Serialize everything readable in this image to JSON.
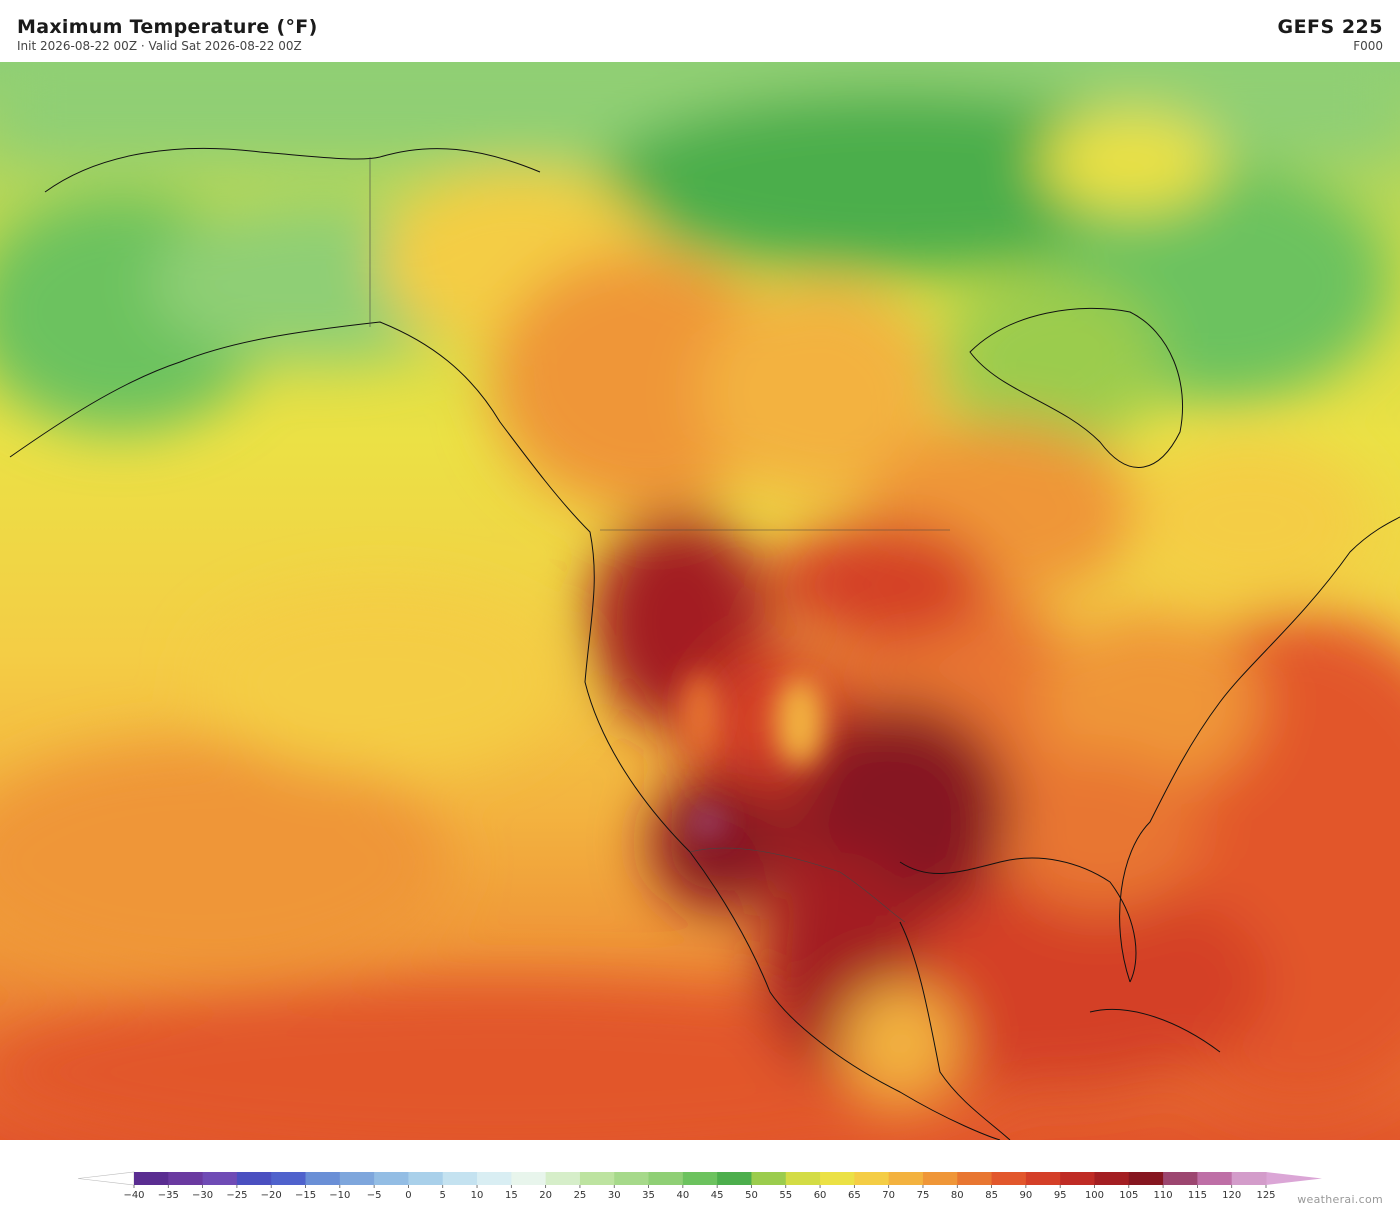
{
  "header": {
    "title": "Maximum Temperature  (°F)",
    "subtitle": "Init 2026-08-22 00Z   ·   Valid Sat 2026-08-22 00Z",
    "model": "GEFS  225",
    "forecast_hour": "F000"
  },
  "colorbar": {
    "ticks": [
      {
        "value": -40,
        "label": "−40"
      },
      {
        "value": -35,
        "label": "−35"
      },
      {
        "value": -30,
        "label": "−30"
      },
      {
        "value": -25,
        "label": "−25"
      },
      {
        "value": -20,
        "label": "−20"
      },
      {
        "value": -15,
        "label": "−15"
      },
      {
        "value": -10,
        "label": "−10"
      },
      {
        "value": -5,
        "label": "−5"
      },
      0,
      5,
      10,
      15,
      20,
      25,
      30,
      35,
      40,
      45,
      50,
      55,
      60,
      65,
      70,
      75,
      80,
      85,
      90,
      95,
      100,
      105,
      110,
      115,
      120,
      125
    ],
    "colors": [
      "#5a2d91",
      "#6a3aa0",
      "#6f4bb5",
      "#4a4fc0",
      "#4f62cc",
      "#6a8fd6",
      "#7ea6dc",
      "#93bde4",
      "#a9d0ea",
      "#c4e2f0",
      "#d9eef3",
      "#e8f5ec",
      "#d6eec9",
      "#bde3a0",
      "#a6d98a",
      "#8fcf75",
      "#6cc25e",
      "#4cae4c",
      "#9bcc4d",
      "#d3dc45",
      "#ebe145",
      "#f4cd45",
      "#f3b23f",
      "#ef9638",
      "#e87631",
      "#e2572c",
      "#d43f28",
      "#bf2b25",
      "#a31e22",
      "#861620",
      "#9c4670",
      "#be6fa6",
      "#d39cca"
    ],
    "under_color": "#ffffff",
    "over_color": "#dba6d6"
  },
  "credit": "weatherai.com"
}
